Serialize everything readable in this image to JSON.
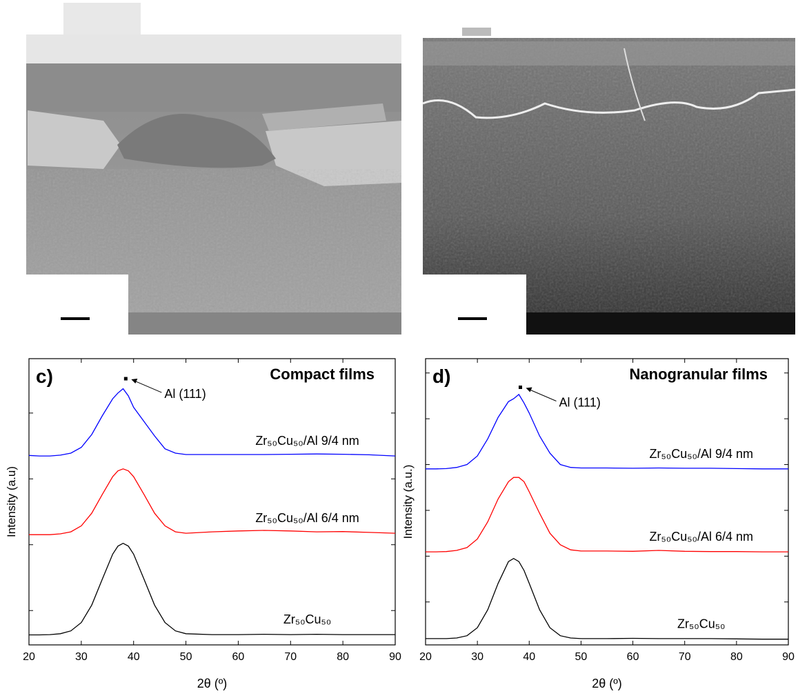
{
  "chart_data": [
    {
      "type": "line",
      "label": "c)",
      "title": "Compact films",
      "xlabel": "2θ (º)",
      "ylabel": "Intensity (a.u)",
      "x": [
        20,
        22,
        24,
        26,
        28,
        30,
        32,
        34,
        36,
        37,
        38,
        39,
        40,
        42,
        44,
        46,
        48,
        50,
        55,
        60,
        65,
        70,
        75,
        80,
        85,
        90
      ],
      "xlim": [
        20,
        90
      ],
      "xticks": [
        20,
        30,
        40,
        50,
        60,
        70,
        80,
        90
      ],
      "ylim": [
        0,
        10
      ],
      "yticks": [
        1.2,
        3.5,
        5.8,
        8.1
      ],
      "annotation": {
        "text": "Al (111)",
        "x": 38.5,
        "y": 9.3
      },
      "series": [
        {
          "name": "Zr₅₀Cu₅₀/Al 9/4 nm",
          "color": "#0000ff",
          "values": [
            6.62,
            6.6,
            6.6,
            6.63,
            6.7,
            6.9,
            7.35,
            8.0,
            8.6,
            8.8,
            8.95,
            8.7,
            8.3,
            7.8,
            7.3,
            6.85,
            6.7,
            6.65,
            6.65,
            6.65,
            6.65,
            6.66,
            6.67,
            6.66,
            6.64,
            6.6
          ]
        },
        {
          "name": "Zr₅₀Cu₅₀/Al 6/4 nm",
          "color": "#ff0000",
          "values": [
            3.85,
            3.85,
            3.85,
            3.88,
            3.95,
            4.16,
            4.6,
            5.25,
            5.88,
            6.08,
            6.15,
            6.08,
            5.88,
            5.25,
            4.6,
            4.16,
            3.95,
            3.9,
            3.95,
            3.98,
            4.0,
            3.98,
            3.95,
            3.96,
            3.93,
            3.9
          ]
        },
        {
          "name": "Zr₅₀Cu₅₀",
          "color": "#000000",
          "values": [
            0.35,
            0.35,
            0.36,
            0.39,
            0.49,
            0.78,
            1.39,
            2.29,
            3.17,
            3.45,
            3.55,
            3.45,
            3.17,
            2.29,
            1.39,
            0.78,
            0.49,
            0.39,
            0.36,
            0.36,
            0.37,
            0.36,
            0.37,
            0.36,
            0.36,
            0.36
          ]
        }
      ]
    },
    {
      "type": "line",
      "label": "d)",
      "title": "Nanogranular films",
      "xlabel": "2θ (º)",
      "ylabel": "Intensity (a.u.)",
      "x": [
        20,
        22,
        24,
        26,
        28,
        30,
        32,
        34,
        36,
        37,
        38,
        39,
        40,
        42,
        44,
        46,
        48,
        50,
        55,
        60,
        65,
        70,
        75,
        80,
        85,
        90
      ],
      "xlim": [
        20,
        90
      ],
      "xticks": [
        20,
        30,
        40,
        50,
        60,
        70,
        80,
        90
      ],
      "ylim": [
        0,
        10
      ],
      "yticks": [
        1.5,
        3.1,
        4.7,
        6.3,
        7.9,
        9.5
      ],
      "annotation": {
        "text": "Al (111)",
        "x": 38.3,
        "y": 9.0
      },
      "series": [
        {
          "name": "Zr₅₀Cu₅₀/Al 9/4 nm",
          "color": "#0000ff",
          "values": [
            6.15,
            6.15,
            6.16,
            6.2,
            6.3,
            6.6,
            7.2,
            7.95,
            8.5,
            8.6,
            8.75,
            8.45,
            8.1,
            7.3,
            6.7,
            6.3,
            6.2,
            6.18,
            6.18,
            6.17,
            6.18,
            6.17,
            6.17,
            6.16,
            6.15,
            6.15
          ]
        },
        {
          "name": "Zr₅₀Cu₅₀/Al 6/4 nm",
          "color": "#ff0000",
          "values": [
            3.25,
            3.25,
            3.26,
            3.3,
            3.4,
            3.7,
            4.3,
            5.1,
            5.7,
            5.85,
            5.85,
            5.7,
            5.35,
            4.6,
            3.9,
            3.5,
            3.32,
            3.28,
            3.28,
            3.27,
            3.3,
            3.27,
            3.26,
            3.26,
            3.25,
            3.25
          ]
        },
        {
          "name": "Zr₅₀Cu₅₀",
          "color": "#000000",
          "values": [
            0.22,
            0.22,
            0.22,
            0.24,
            0.32,
            0.6,
            1.23,
            2.15,
            2.91,
            3.02,
            2.91,
            2.6,
            2.15,
            1.23,
            0.6,
            0.32,
            0.24,
            0.22,
            0.22,
            0.23,
            0.22,
            0.22,
            0.22,
            0.21,
            0.2,
            0.2
          ]
        }
      ]
    }
  ]
}
